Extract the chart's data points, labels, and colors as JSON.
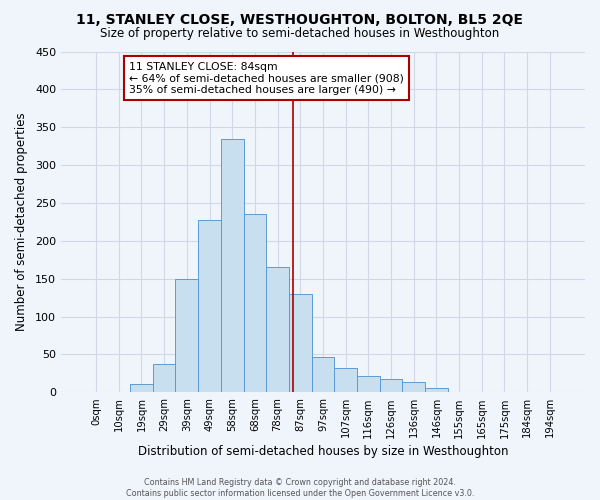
{
  "title": "11, STANLEY CLOSE, WESTHOUGHTON, BOLTON, BL5 2QE",
  "subtitle": "Size of property relative to semi-detached houses in Westhoughton",
  "xlabel": "Distribution of semi-detached houses by size in Westhoughton",
  "ylabel": "Number of semi-detached properties",
  "bar_labels": [
    "0sqm",
    "10sqm",
    "19sqm",
    "29sqm",
    "39sqm",
    "49sqm",
    "58sqm",
    "68sqm",
    "78sqm",
    "87sqm",
    "97sqm",
    "107sqm",
    "116sqm",
    "126sqm",
    "136sqm",
    "146sqm",
    "155sqm",
    "165sqm",
    "175sqm",
    "184sqm",
    "194sqm"
  ],
  "bar_values": [
    0,
    0,
    11,
    37,
    150,
    228,
    335,
    235,
    165,
    130,
    47,
    32,
    21,
    18,
    13,
    6,
    0,
    0,
    0,
    0,
    0
  ],
  "property_label": "11 STANLEY CLOSE: 84sqm",
  "smaller_pct": 64,
  "smaller_count": 908,
  "larger_pct": 35,
  "larger_count": 490,
  "bar_color": "#c8dff0",
  "bar_edge_color": "#5b9bd5",
  "marker_line_color": "#aa0000",
  "annotation_box_edge": "#aa0000",
  "grid_color": "#d0d8e8",
  "bg_color": "#f0f4fb",
  "footer_text": "Contains HM Land Registry data © Crown copyright and database right 2024.\nContains public sector information licensed under the Open Government Licence v3.0.",
  "ylim": [
    0,
    450
  ],
  "yticks": [
    0,
    50,
    100,
    150,
    200,
    250,
    300,
    350,
    400,
    450
  ],
  "line_x_index": 8.67
}
